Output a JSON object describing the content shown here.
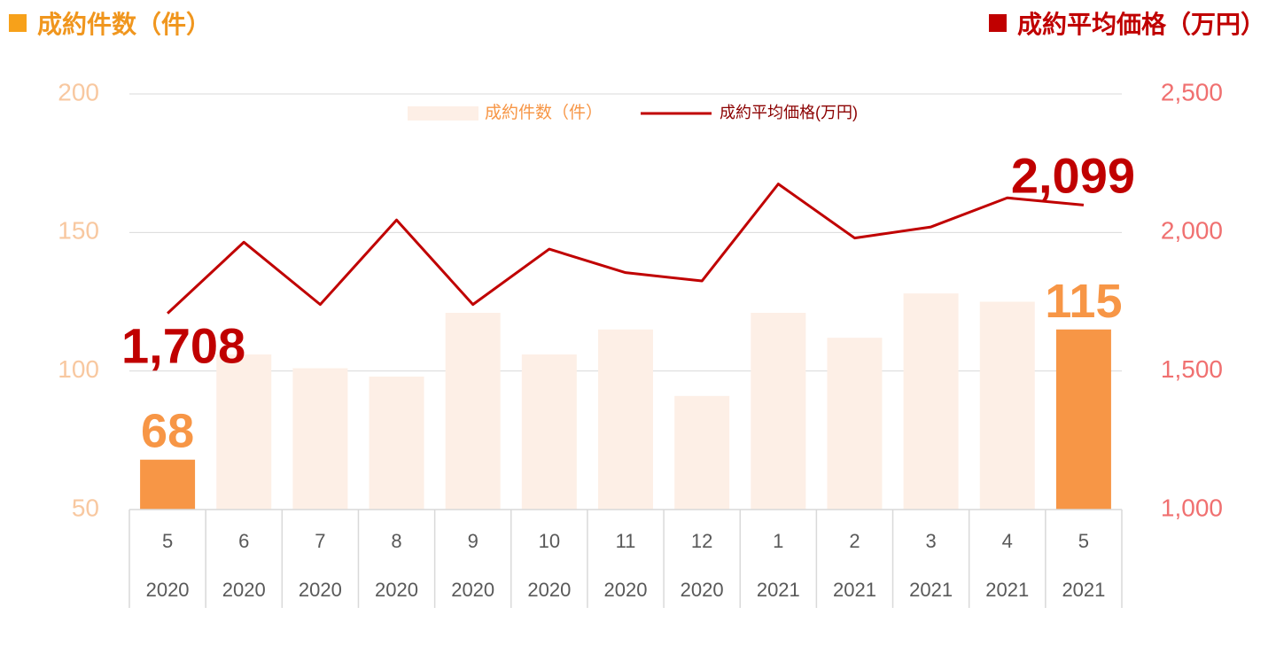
{
  "header": {
    "left_title": "成約件数（件）",
    "right_title": "成約平均価格（万円）"
  },
  "colors": {
    "bar_highlight": "#f79646",
    "bar_light": "#fdefe6",
    "line": "#c00000",
    "left_axis_text": "#f8c8a0",
    "right_axis_text": "#f07070",
    "grid": "#d9d9d9",
    "label_orange": "#f79646",
    "label_red": "#c00000"
  },
  "chart_data": {
    "type": "bar",
    "categories": [
      "5",
      "6",
      "7",
      "8",
      "9",
      "10",
      "11",
      "12",
      "1",
      "2",
      "3",
      "4",
      "5"
    ],
    "years": [
      "2020",
      "2020",
      "2020",
      "2020",
      "2020",
      "2020",
      "2020",
      "2020",
      "2021",
      "2021",
      "2021",
      "2021",
      "2021"
    ],
    "series": [
      {
        "name": "成約件数（件）",
        "type": "bar",
        "axis": "left",
        "values": [
          68,
          106,
          101,
          98,
          121,
          106,
          115,
          91,
          121,
          112,
          128,
          125,
          115
        ],
        "highlight": [
          true,
          false,
          false,
          false,
          false,
          false,
          false,
          false,
          false,
          false,
          false,
          false,
          true
        ]
      },
      {
        "name": "成約平均価格(万円)",
        "type": "line",
        "axis": "right",
        "values": [
          1708,
          1965,
          1740,
          2045,
          1740,
          1940,
          1855,
          1825,
          2175,
          1980,
          2020,
          2125,
          2099
        ]
      }
    ],
    "left_axis": {
      "ylim": [
        50,
        200
      ],
      "ticks": [
        "50",
        "100",
        "150",
        "200"
      ]
    },
    "right_axis": {
      "ylim": [
        1000,
        2500
      ],
      "ticks": [
        "1,000",
        "1,500",
        "2,000",
        "2,500"
      ]
    },
    "annotations": [
      {
        "series": 0,
        "index": 0,
        "text": "68"
      },
      {
        "series": 0,
        "index": 12,
        "text": "115"
      },
      {
        "series": 1,
        "index": 0,
        "text": "1,708"
      },
      {
        "series": 1,
        "index": 12,
        "text": "2,099"
      }
    ],
    "legend": {
      "placement": "top-center",
      "items": [
        "成約件数（件）",
        "成約平均価格(万円)"
      ]
    },
    "grid": true
  }
}
